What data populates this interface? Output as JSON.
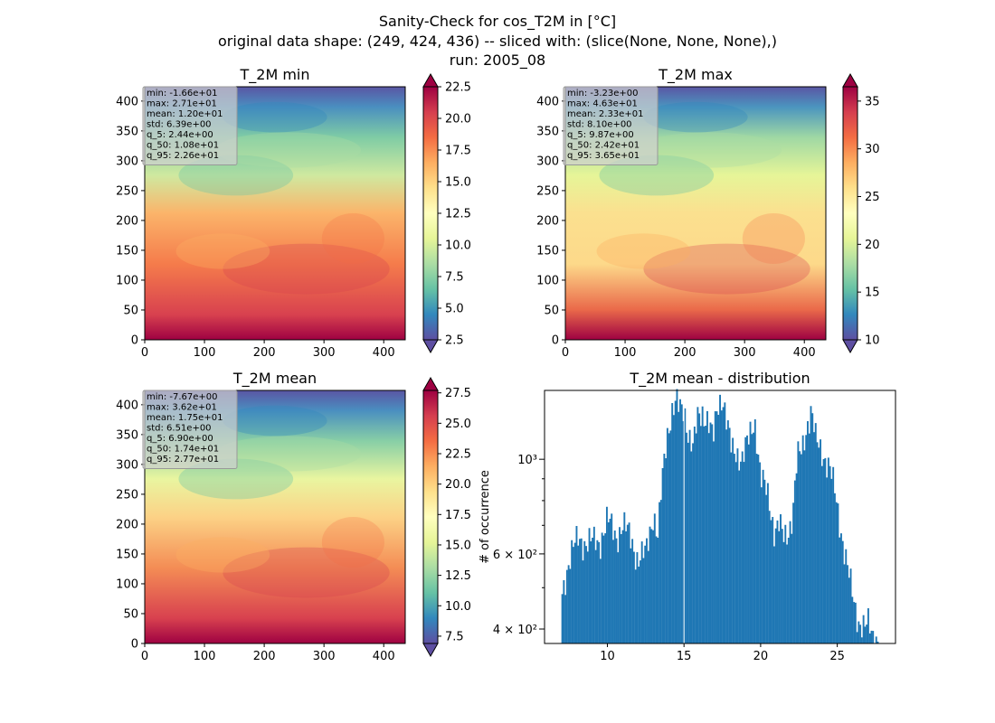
{
  "figure": {
    "title_lines": [
      "Sanity-Check for cos_T2M in [°C]",
      "original data shape: (249, 424, 436) -- sliced with: (slice(None, None, None),)",
      "run: 2005_08"
    ]
  },
  "chart_data": [
    {
      "type": "heatmap",
      "title": "T_2M min",
      "colormap": "Spectral_r",
      "xlim": [
        0,
        436
      ],
      "ylim": [
        0,
        424
      ],
      "x_ticks": [
        "0",
        "100",
        "200",
        "300",
        "400"
      ],
      "y_ticks": [
        "0",
        "50",
        "100",
        "150",
        "200",
        "250",
        "300",
        "350",
        "400"
      ],
      "colorbar": {
        "range": [
          2.5,
          22.5
        ],
        "ticks": [
          "2.5",
          "5.0",
          "7.5",
          "10.0",
          "12.5",
          "15.0",
          "17.5",
          "20.0",
          "22.5"
        ]
      },
      "stats": [
        "min: -1.66e+01",
        "max: 2.71e+01",
        "mean: 1.20e+01",
        "std: 6.39e+00",
        "q_5: 2.44e+00",
        "q_50: 1.08e+01",
        "q_95: 2.26e+01"
      ]
    },
    {
      "type": "heatmap",
      "title": "T_2M max",
      "colormap": "Spectral_r",
      "xlim": [
        0,
        436
      ],
      "ylim": [
        0,
        424
      ],
      "x_ticks": [
        "0",
        "100",
        "200",
        "300",
        "400"
      ],
      "y_ticks": [
        "0",
        "50",
        "100",
        "150",
        "200",
        "250",
        "300",
        "350",
        "400"
      ],
      "colorbar": {
        "range": [
          10,
          36.5
        ],
        "ticks": [
          "10",
          "15",
          "20",
          "25",
          "30",
          "35"
        ]
      },
      "stats": [
        "min: -3.23e+00",
        "max: 4.63e+01",
        "mean: 2.33e+01",
        "std: 8.10e+00",
        "q_5: 9.87e+00",
        "q_50: 2.42e+01",
        "q_95: 3.65e+01"
      ]
    },
    {
      "type": "heatmap",
      "title": "T_2M mean",
      "colormap": "Spectral_r",
      "xlim": [
        0,
        436
      ],
      "ylim": [
        0,
        424
      ],
      "x_ticks": [
        "0",
        "100",
        "200",
        "300",
        "400"
      ],
      "y_ticks": [
        "0",
        "50",
        "100",
        "150",
        "200",
        "250",
        "300",
        "350",
        "400"
      ],
      "colorbar": {
        "range": [
          6.9,
          27.7
        ],
        "ticks": [
          "7.5",
          "10.0",
          "12.5",
          "15.0",
          "17.5",
          "20.0",
          "22.5",
          "25.0",
          "27.5"
        ]
      },
      "stats": [
        "min: -7.67e+00",
        "max: 3.62e+01",
        "mean: 1.75e+01",
        "std: 6.51e+00",
        "q_5: 6.90e+00",
        "q_50: 1.74e+01",
        "q_95: 2.77e+01"
      ]
    },
    {
      "type": "bar",
      "title": "T_2M mean - distribution",
      "xlabel": "",
      "ylabel": "# of occurrence",
      "y_scale": "log",
      "xlim": [
        5.9,
        28.8
      ],
      "ylim": [
        370,
        1450
      ],
      "x_ticks": [
        "10",
        "15",
        "20",
        "25"
      ],
      "y_tick_labels": [
        "4 × 10²",
        "6 × 10²",
        "10³"
      ],
      "color": "#1f77b4",
      "bins": [
        7,
        27.7
      ],
      "bin_width": 0.104,
      "profile_x": [
        7.0,
        7.2,
        7.5,
        7.8,
        8.1,
        8.5,
        9.0,
        9.5,
        10.0,
        10.4,
        10.6,
        11.0,
        11.5,
        12.0,
        12.5,
        13.0,
        13.3,
        13.6,
        13.9,
        14.2,
        14.5,
        14.7,
        15.0,
        15.3,
        15.6,
        15.9,
        16.2,
        16.5,
        16.9,
        17.2,
        17.5,
        17.8,
        18.1,
        18.4,
        18.8,
        19.2,
        19.6,
        20.0,
        20.5,
        20.9,
        21.2,
        21.5,
        21.8,
        22.1,
        22.4,
        22.7,
        23.0,
        23.3,
        23.6,
        24.0,
        24.5,
        24.8,
        25.2,
        25.5,
        25.8,
        26.1,
        26.4,
        26.6,
        26.8,
        27.0,
        27.3,
        27.7
      ],
      "profile_y": [
        470,
        520,
        580,
        620,
        650,
        640,
        640,
        640,
        720,
        680,
        660,
        700,
        660,
        580,
        600,
        750,
        650,
        900,
        1150,
        1300,
        1360,
        1300,
        1320,
        1150,
        1050,
        1250,
        1300,
        1250,
        1100,
        1350,
        1420,
        1200,
        1050,
        1050,
        1000,
        1100,
        1250,
        900,
        820,
        680,
        700,
        650,
        680,
        750,
        1000,
        1050,
        1200,
        1300,
        1100,
        1050,
        950,
        850,
        700,
        600,
        520,
        460,
        420,
        410,
        400,
        410,
        390,
        380
      ]
    }
  ]
}
